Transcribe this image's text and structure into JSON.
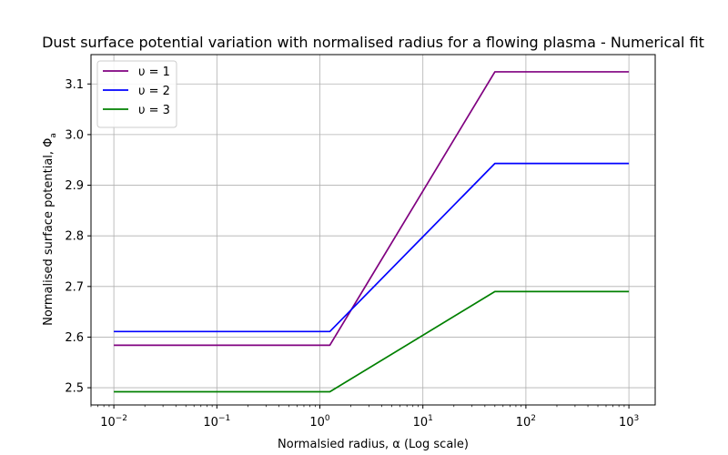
{
  "chart_data": {
    "type": "line",
    "title": "Dust surface potential variation with normalised radius for a flowing plasma - Numerical fit",
    "xlabel": "Normalsied radius, α (Log scale)",
    "ylabel": "Normalised surface potential, Φ",
    "ylabel_sub": "a",
    "xscale": "log",
    "xlim": [
      0.006,
      1800
    ],
    "ylim": [
      2.466,
      3.158
    ],
    "grid": true,
    "legend_position": "top-left",
    "x_ticks": [
      {
        "value": 0.01,
        "base": "10",
        "exp": "−2"
      },
      {
        "value": 0.1,
        "base": "10",
        "exp": "−1"
      },
      {
        "value": 1,
        "base": "10",
        "exp": "0"
      },
      {
        "value": 10,
        "base": "10",
        "exp": "1"
      },
      {
        "value": 100,
        "base": "10",
        "exp": "2"
      },
      {
        "value": 1000,
        "base": "10",
        "exp": "3"
      }
    ],
    "y_ticks": [
      {
        "value": 2.5,
        "label": "2.5"
      },
      {
        "value": 2.6,
        "label": "2.6"
      },
      {
        "value": 2.7,
        "label": "2.7"
      },
      {
        "value": 2.8,
        "label": "2.8"
      },
      {
        "value": 2.9,
        "label": "2.9"
      },
      {
        "value": 3.0,
        "label": "3.0"
      },
      {
        "value": 3.1,
        "label": "3.1"
      }
    ],
    "series": [
      {
        "name": "υ = 1",
        "color": "#800080",
        "x": [
          0.01,
          1.25,
          50,
          1000
        ],
        "y": [
          2.584,
          2.584,
          3.124,
          3.124
        ]
      },
      {
        "name": "υ = 2",
        "color": "#0000ff",
        "x": [
          0.01,
          1.25,
          50,
          1000
        ],
        "y": [
          2.611,
          2.611,
          2.943,
          2.943
        ]
      },
      {
        "name": "υ = 3",
        "color": "#008000",
        "x": [
          0.01,
          1.25,
          50,
          1000
        ],
        "y": [
          2.492,
          2.492,
          2.69,
          2.69
        ]
      }
    ]
  }
}
